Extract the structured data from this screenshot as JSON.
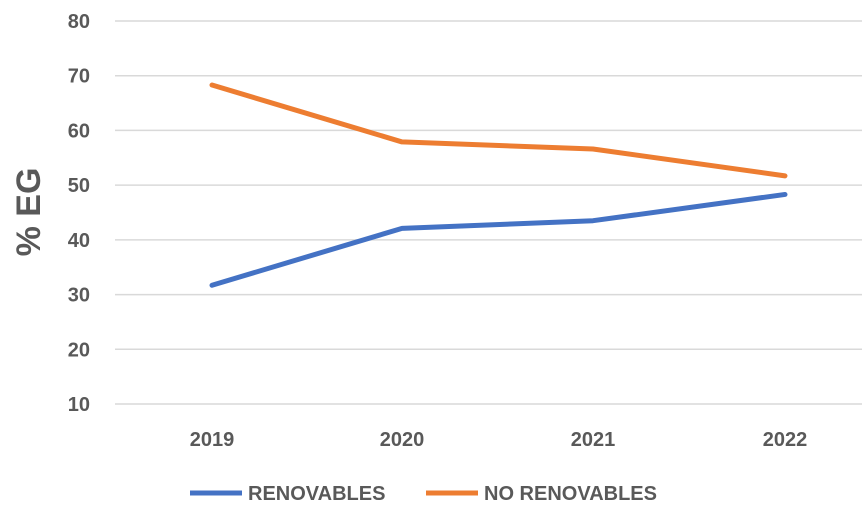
{
  "chart_data": {
    "type": "line",
    "title": "",
    "xlabel": "",
    "ylabel": "% EG",
    "categories": [
      "2019",
      "2020",
      "2021",
      "2022"
    ],
    "series": [
      {
        "name": "RENOVABLES",
        "values": [
          31.7,
          42.1,
          43.5,
          48.3
        ],
        "color": "#4472C4"
      },
      {
        "name": "NO RENOVABLES",
        "values": [
          68.3,
          57.9,
          56.6,
          51.7
        ],
        "color": "#ED7D31"
      }
    ],
    "yticks": [
      10,
      20,
      30,
      40,
      50,
      60,
      70,
      80
    ],
    "ylim": [
      10,
      80
    ],
    "grid": true,
    "legend_position": "bottom"
  }
}
